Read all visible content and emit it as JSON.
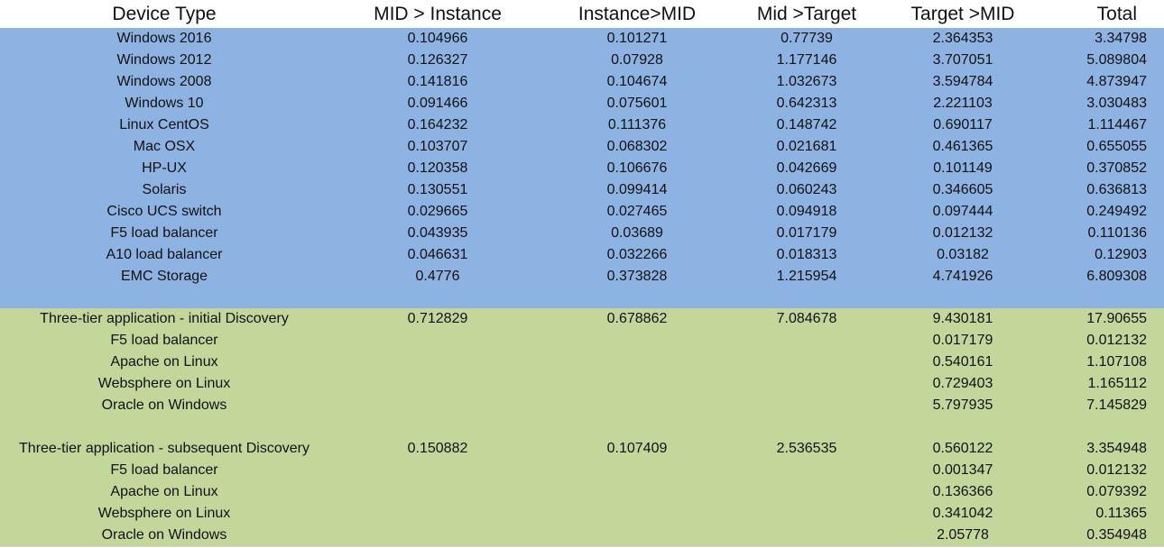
{
  "headers": [
    "Device Type",
    "MID > Instance",
    "Instance>MID",
    "Mid >Target",
    "Target >MID",
    "Total"
  ],
  "colors": {
    "blue_band": "#8db3e2",
    "green_band": "#c4d79b",
    "header_bg": "#ffffff"
  },
  "device_rows": [
    [
      "Windows 2016",
      "0.104966",
      "0.101271",
      "0.77739",
      "2.364353",
      "3.34798"
    ],
    [
      "Windows 2012",
      "0.126327",
      "0.07928",
      "1.177146",
      "3.707051",
      "5.089804"
    ],
    [
      "Windows 2008",
      "0.141816",
      "0.104674",
      "1.032673",
      "3.594784",
      "4.873947"
    ],
    [
      "Windows 10",
      "0.091466",
      "0.075601",
      "0.642313",
      "2.221103",
      "3.030483"
    ],
    [
      "Linux CentOS",
      "0.164232",
      "0.111376",
      "0.148742",
      "0.690117",
      "1.114467"
    ],
    [
      "Mac OSX",
      "0.103707",
      "0.068302",
      "0.021681",
      "0.461365",
      "0.655055"
    ],
    [
      "HP-UX",
      "0.120358",
      "0.106676",
      "0.042669",
      "0.101149",
      "0.370852"
    ],
    [
      "Solaris",
      "0.130551",
      "0.099414",
      "0.060243",
      "0.346605",
      "0.636813"
    ],
    [
      "Cisco UCS switch",
      "0.029665",
      "0.027465",
      "0.094918",
      "0.097444",
      "0.249492"
    ],
    [
      "F5 load balancer",
      "0.043935",
      "0.03689",
      "0.017179",
      "0.012132",
      "0.110136"
    ],
    [
      "A10 load balancer",
      "0.046631",
      "0.032266",
      "0.018313",
      "0.03182",
      "0.12903"
    ],
    [
      "EMC Storage",
      "0.4776",
      "0.373828",
      "1.215954",
      "4.741926",
      "6.809308"
    ]
  ],
  "initial_rows": [
    [
      "Three-tier application - initial Discovery",
      "0.712829",
      "0.678862",
      "7.084678",
      "9.430181",
      "17.90655"
    ],
    [
      "F5 load balancer",
      "",
      "",
      "",
      "0.017179",
      "0.012132"
    ],
    [
      "Apache on Linux",
      "",
      "",
      "",
      "0.540161",
      "1.107108"
    ],
    [
      "Websphere on Linux",
      "",
      "",
      "",
      "0.729403",
      "1.165112"
    ],
    [
      "Oracle on Windows",
      "",
      "",
      "",
      "5.797935",
      "7.145829"
    ]
  ],
  "subsequent_rows": [
    [
      "Three-tier application - subsequent Discovery",
      "0.150882",
      "0.107409",
      "2.536535",
      "0.560122",
      "3.354948"
    ],
    [
      "F5 load balancer",
      "",
      "",
      "",
      "0.001347",
      "0.012132"
    ],
    [
      "Apache on Linux",
      "",
      "",
      "",
      "0.136366",
      "0.079392"
    ],
    [
      "Websphere on Linux",
      "",
      "",
      "",
      "0.341042",
      "0.11365"
    ],
    [
      "Oracle on Windows",
      "",
      "",
      "",
      "2.05778",
      "0.354948"
    ]
  ]
}
